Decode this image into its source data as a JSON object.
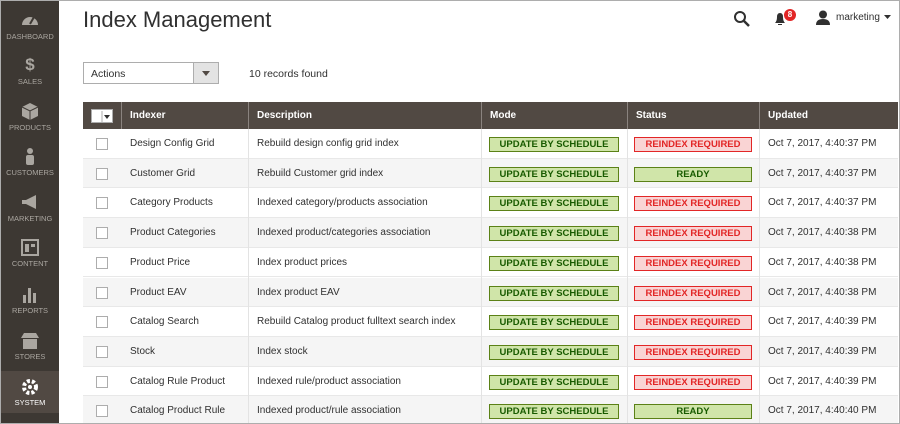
{
  "sidebar": [
    "DASHBOARD",
    "SALES",
    "PRODUCTS",
    "CUSTOMERS",
    "MARKETING",
    "CONTENT",
    "REPORTS",
    "STORES",
    "SYSTEM"
  ],
  "header": {
    "title": "Index Management",
    "notifications": "8",
    "user": "marketing"
  },
  "toolbar": {
    "actions": "Actions",
    "records": "10 records found"
  },
  "table": {
    "columns": [
      "Indexer",
      "Description",
      "Mode",
      "Status",
      "Updated"
    ],
    "rows": [
      {
        "indexer": "Design Config Grid",
        "description": "Rebuild design config grid index",
        "mode": "UPDATE BY SCHEDULE",
        "status": "REINDEX REQUIRED",
        "status_color": "red",
        "updated": "Oct 7, 2017, 4:40:37 PM"
      },
      {
        "indexer": "Customer Grid",
        "description": "Rebuild Customer grid index",
        "mode": "UPDATE BY SCHEDULE",
        "status": "READY",
        "status_color": "green",
        "updated": "Oct 7, 2017, 4:40:37 PM"
      },
      {
        "indexer": "Category Products",
        "description": "Indexed category/products association",
        "mode": "UPDATE BY SCHEDULE",
        "status": "REINDEX REQUIRED",
        "status_color": "red",
        "updated": "Oct 7, 2017, 4:40:37 PM"
      },
      {
        "indexer": "Product Categories",
        "description": "Indexed product/categories association",
        "mode": "UPDATE BY SCHEDULE",
        "status": "REINDEX REQUIRED",
        "status_color": "red",
        "updated": "Oct 7, 2017, 4:40:38 PM"
      },
      {
        "indexer": "Product Price",
        "description": "Index product prices",
        "mode": "UPDATE BY SCHEDULE",
        "status": "REINDEX REQUIRED",
        "status_color": "red",
        "updated": "Oct 7, 2017, 4:40:38 PM"
      },
      {
        "indexer": "Product EAV",
        "description": "Index product EAV",
        "mode": "UPDATE BY SCHEDULE",
        "status": "REINDEX REQUIRED",
        "status_color": "red",
        "updated": "Oct 7, 2017, 4:40:38 PM"
      },
      {
        "indexer": "Catalog Search",
        "description": "Rebuild Catalog product fulltext search index",
        "mode": "UPDATE BY SCHEDULE",
        "status": "REINDEX REQUIRED",
        "status_color": "red",
        "updated": "Oct 7, 2017, 4:40:39 PM"
      },
      {
        "indexer": "Stock",
        "description": "Index stock",
        "mode": "UPDATE BY SCHEDULE",
        "status": "REINDEX REQUIRED",
        "status_color": "red",
        "updated": "Oct 7, 2017, 4:40:39 PM"
      },
      {
        "indexer": "Catalog Rule Product",
        "description": "Indexed rule/product association",
        "mode": "UPDATE BY SCHEDULE",
        "status": "REINDEX REQUIRED",
        "status_color": "red",
        "updated": "Oct 7, 2017, 4:40:39 PM"
      },
      {
        "indexer": "Catalog Product Rule",
        "description": "Indexed product/rule association",
        "mode": "UPDATE BY SCHEDULE",
        "status": "READY",
        "status_color": "green",
        "updated": "Oct 7, 2017, 4:40:40 PM"
      }
    ]
  }
}
